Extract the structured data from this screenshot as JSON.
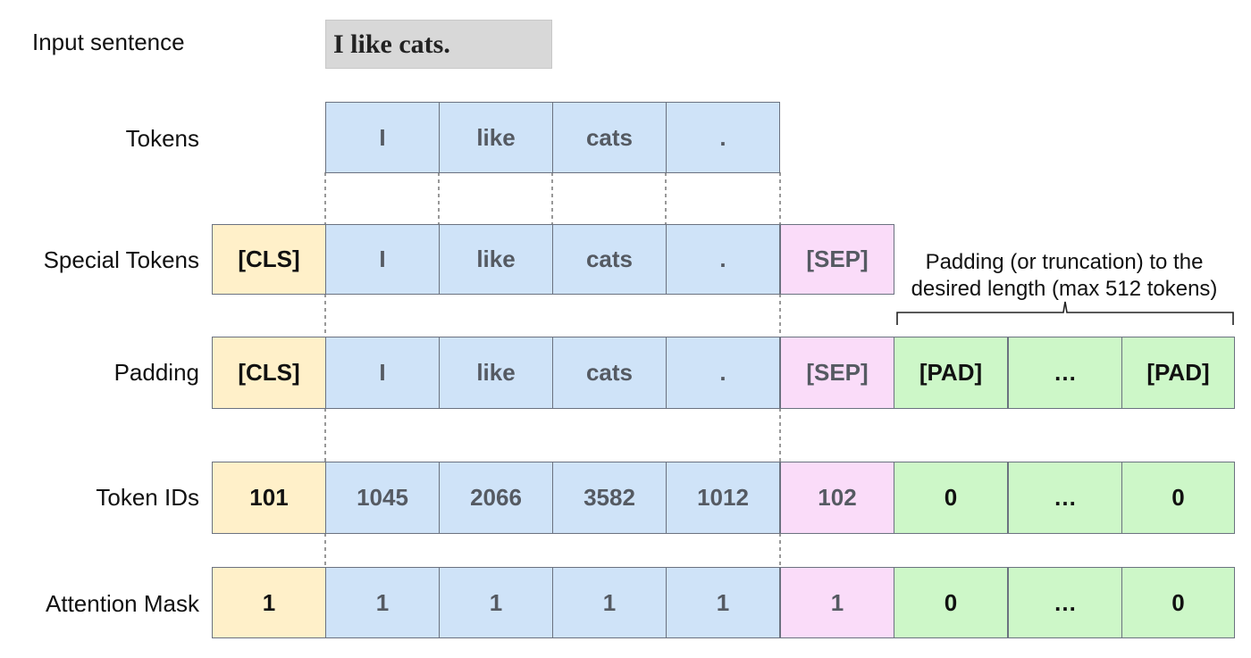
{
  "labels": {
    "input": "Input sentence",
    "tokens": "Tokens",
    "special": "Special Tokens",
    "padding": "Padding",
    "ids": "Token IDs",
    "mask": "Attention Mask"
  },
  "input_sentence": "I like cats.",
  "tokens": [
    "I",
    "like",
    "cats",
    "."
  ],
  "special_tokens": [
    "[CLS]",
    "I",
    "like",
    "cats",
    ".",
    "[SEP]"
  ],
  "padding_row": [
    "[CLS]",
    "I",
    "like",
    "cats",
    ".",
    "[SEP]",
    "[PAD]",
    "…",
    "[PAD]"
  ],
  "token_ids": [
    "101",
    "1045",
    "2066",
    "3582",
    "1012",
    "102",
    "0",
    "…",
    "0"
  ],
  "attention_mask": [
    "1",
    "1",
    "1",
    "1",
    "1",
    "1",
    "0",
    "…",
    "0"
  ],
  "annotation": {
    "line1": "Padding (or truncation) to the",
    "line2": "desired length (max 512 tokens)"
  },
  "colors": {
    "cls": "#fff0c9",
    "token": "#cfe3f8",
    "sep": "#fadcf9",
    "pad": "#cdf7c8",
    "input_bg": "#d8d8d8"
  }
}
